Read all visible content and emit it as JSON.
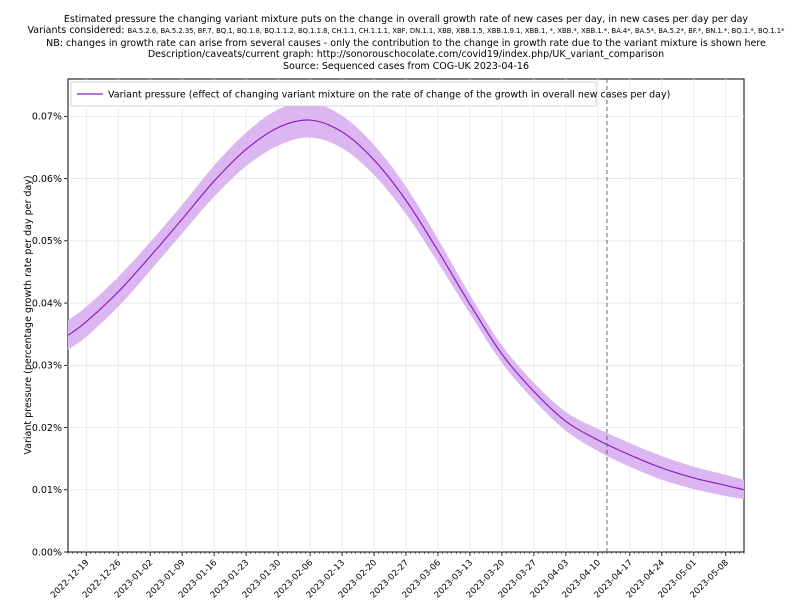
{
  "header": {
    "title": "Estimated pressure the changing variant mixture puts on the change in overall growth rate of new cases per day, in new cases per day per day",
    "variants_label": "Variants considered:",
    "variants_list": "BA.5.2.6, BA.5.2.35, BF.7, BQ.1, BQ.1.8, BQ.1.1.2, BQ.1.1.8, CH.1.1, CH.1.1.1, XBF, DN.1.1, XBB, XBB.1.5, XBB.1.9.1, XBB.1, *, XBB.*, XBB.1.*, BA.4*, BA.5*, BA.5.2*, BF.*, BN.1.*, BQ.1.*, BQ.1.1*",
    "note": "NB: changes in growth rate can arise from several causes - only the contribution to the change in growth rate due to the variant mixture is shown here",
    "description": "Description/caveats/current graph: http://sonorouschocolate.com/covid19/index.php/UK_variant_comparison",
    "source": "Source: Sequenced cases from COG-UK 2023-04-16"
  },
  "chart_data": {
    "type": "line",
    "title": "Estimated pressure the changing variant mixture puts on the change in overall growth rate of new cases per day, in new cases per day per day",
    "ylabel": "Variant pressure (percentage growth rate per day per day)",
    "xlabel": "",
    "x_range": [
      "2022-12-15",
      "2023-05-12"
    ],
    "ylim": [
      0.0,
      0.00076
    ],
    "yticks": [
      0.0,
      0.0001,
      0.0002,
      0.0003,
      0.0004,
      0.0005,
      0.0006,
      0.0007
    ],
    "ytick_labels": [
      "0.00%",
      "0.01%",
      "0.02%",
      "0.03%",
      "0.04%",
      "0.05%",
      "0.06%",
      "0.07%"
    ],
    "xticks": [
      "2022-12-19",
      "2022-12-26",
      "2023-01-02",
      "2023-01-09",
      "2023-01-16",
      "2023-01-23",
      "2023-01-30",
      "2023-02-06",
      "2023-02-13",
      "2023-02-20",
      "2023-02-27",
      "2023-03-06",
      "2023-03-13",
      "2023-03-20",
      "2023-03-27",
      "2023-04-03",
      "2023-04-10",
      "2023-04-17",
      "2023-04-24",
      "2023-05-01",
      "2023-05-08"
    ],
    "grid": true,
    "legend_position": "top-left",
    "vertical_marker": {
      "x": "2023-04-12",
      "style": "dashed"
    },
    "series": [
      {
        "name": "Variant pressure (effect of changing variant mixture on the rate of change of the growth in overall new cases per day)",
        "color": "#8b1fc7",
        "band_color": "#dcb6f0",
        "x": [
          "2022-12-15",
          "2022-12-19",
          "2022-12-26",
          "2023-01-02",
          "2023-01-09",
          "2023-01-16",
          "2023-01-23",
          "2023-01-30",
          "2023-02-06",
          "2023-02-13",
          "2023-02-20",
          "2023-02-27",
          "2023-03-06",
          "2023-03-13",
          "2023-03-20",
          "2023-03-27",
          "2023-04-03",
          "2023-04-10",
          "2023-04-17",
          "2023-04-24",
          "2023-05-01",
          "2023-05-08",
          "2023-05-12"
        ],
        "y": [
          0.000348,
          0.00037,
          0.000418,
          0.000475,
          0.000535,
          0.000596,
          0.000647,
          0.000682,
          0.000694,
          0.000675,
          0.00063,
          0.000565,
          0.000484,
          0.000398,
          0.000318,
          0.000258,
          0.00021,
          0.00018,
          0.000156,
          0.000135,
          0.000119,
          0.000107,
          0.0001
        ],
        "y_low": [
          0.000325,
          0.000346,
          0.000394,
          0.000452,
          0.000512,
          0.000571,
          0.00062,
          0.000653,
          0.000666,
          0.000649,
          0.000606,
          0.000543,
          0.000465,
          0.000383,
          0.000304,
          0.000244,
          0.000195,
          0.000162,
          0.000137,
          0.000116,
          0.000101,
          9e-05,
          8.5e-05
        ],
        "y_high": [
          0.000372,
          0.000394,
          0.000442,
          0.000498,
          0.000558,
          0.000621,
          0.000674,
          0.000711,
          0.000722,
          0.000701,
          0.000654,
          0.000587,
          0.000503,
          0.000413,
          0.000332,
          0.000272,
          0.000225,
          0.000198,
          0.000175,
          0.000154,
          0.000137,
          0.000124,
          0.000116
        ]
      }
    ]
  }
}
